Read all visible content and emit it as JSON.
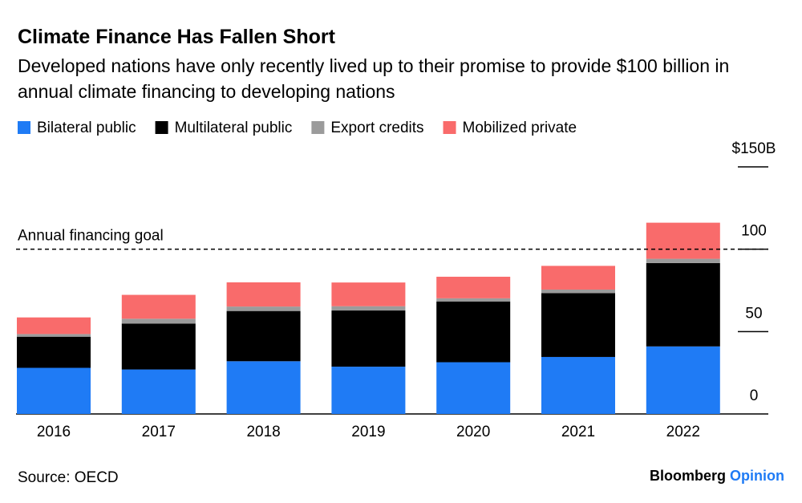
{
  "chart_data": {
    "type": "stacked-bar",
    "title": "Climate Finance Has Fallen Short",
    "subtitle": "Developed nations have only recently lived up to their promise to provide $100 billion in annual climate financing to developing nations",
    "categories": [
      "2016",
      "2017",
      "2018",
      "2019",
      "2020",
      "2021",
      "2022"
    ],
    "series": [
      {
        "name": "Bilateral public",
        "color": "#1f7bf5",
        "values": [
          28.0,
          27.0,
          32.0,
          28.7,
          31.4,
          34.6,
          41.0
        ]
      },
      {
        "name": "Multilateral public",
        "color": "#000000",
        "values": [
          18.9,
          27.9,
          30.5,
          34.1,
          36.9,
          38.8,
          50.6
        ]
      },
      {
        "name": "Export credits",
        "color": "#9b9b9b",
        "values": [
          1.6,
          2.9,
          2.7,
          2.6,
          1.9,
          2.1,
          2.6
        ]
      },
      {
        "name": "Mobilized private",
        "color": "#f96b6b",
        "values": [
          10.1,
          14.5,
          14.7,
          14.4,
          13.1,
          14.4,
          21.9
        ]
      }
    ],
    "ylim": [
      0,
      150
    ],
    "yticks": [
      0,
      50,
      100,
      {
        "value": 150,
        "label": "$150B"
      }
    ],
    "goal": {
      "label": "Annual financing goal",
      "value": 100
    },
    "source": "Source: OECD",
    "credit": {
      "brand": "Bloomberg",
      "section": "Opinion"
    }
  }
}
